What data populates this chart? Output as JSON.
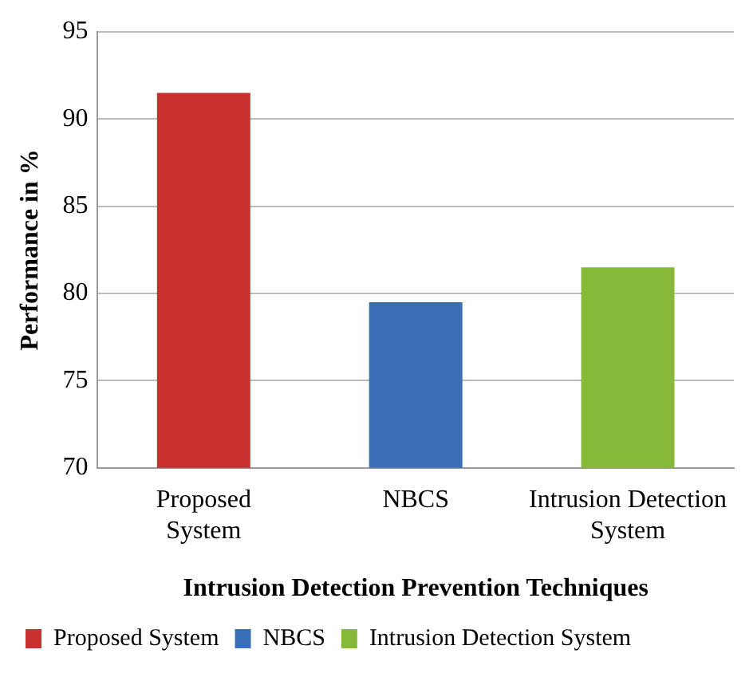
{
  "chart_data": {
    "type": "bar",
    "categories": [
      "Proposed System",
      "NBCS",
      "Intrusion Detection System"
    ],
    "series": [
      {
        "name": "Proposed System",
        "color": "#c8302f",
        "values": [
          91.5,
          null,
          null
        ]
      },
      {
        "name": "NBCS",
        "color": "#3a6fb8",
        "values": [
          null,
          79.5,
          null
        ]
      },
      {
        "name": "Intrusion Detection System",
        "color": "#86b93a",
        "values": [
          null,
          null,
          81.5
        ]
      }
    ],
    "xlabel": "Intrusion Detection Prevention Techniques",
    "ylabel": "Performance in %",
    "ylim": [
      70,
      95
    ],
    "yticks": [
      70,
      75,
      80,
      85,
      90,
      95
    ],
    "grid": "y",
    "legend": "bottom"
  }
}
